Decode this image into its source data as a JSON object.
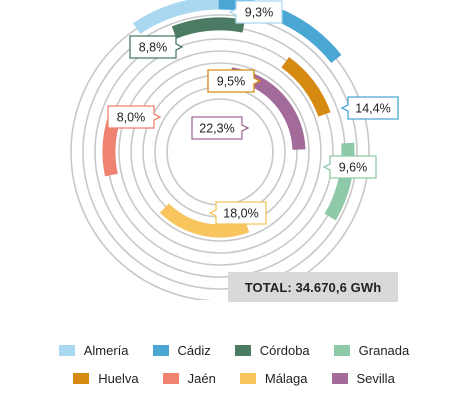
{
  "chart_data": {
    "type": "radial-bar",
    "total_label": "TOTAL: 34.670,6 GWh",
    "series": [
      {
        "name": "Almería",
        "value": 9.3,
        "label": "9,3%",
        "color": "#a9d8f0"
      },
      {
        "name": "Cádiz",
        "value": 14.4,
        "label": "14,4%",
        "color": "#4aa6d3"
      },
      {
        "name": "Córdoba",
        "value": 8.8,
        "label": "8,8%",
        "color": "#4b7b62"
      },
      {
        "name": "Granada",
        "value": 9.6,
        "label": "9,6%",
        "color": "#8fcaa8"
      },
      {
        "name": "Huelva",
        "value": 9.5,
        "label": "9,5%",
        "color": "#d68a12"
      },
      {
        "name": "Jaén",
        "value": 8.0,
        "label": "8,0%",
        "color": "#ef8270"
      },
      {
        "name": "Málaga",
        "value": 18.0,
        "label": "18,0%",
        "color": "#f7c45e"
      },
      {
        "name": "Sevilla",
        "value": 22.3,
        "label": "22,3%",
        "color": "#a36b9a"
      }
    ]
  },
  "legend": {
    "row1": [
      {
        "label": "Almería",
        "color": "#a9d8f0"
      },
      {
        "label": "Cádiz",
        "color": "#4aa6d3"
      },
      {
        "label": "Córdoba",
        "color": "#4b7b62"
      },
      {
        "label": "Granada",
        "color": "#8fcaa8"
      }
    ],
    "row2": [
      {
        "label": "Huelva",
        "color": "#d68a12"
      },
      {
        "label": "Jaén",
        "color": "#ef8270"
      },
      {
        "label": "Málaga",
        "color": "#f7c45e"
      },
      {
        "label": "Sevilla",
        "color": "#a36b9a"
      }
    ]
  }
}
